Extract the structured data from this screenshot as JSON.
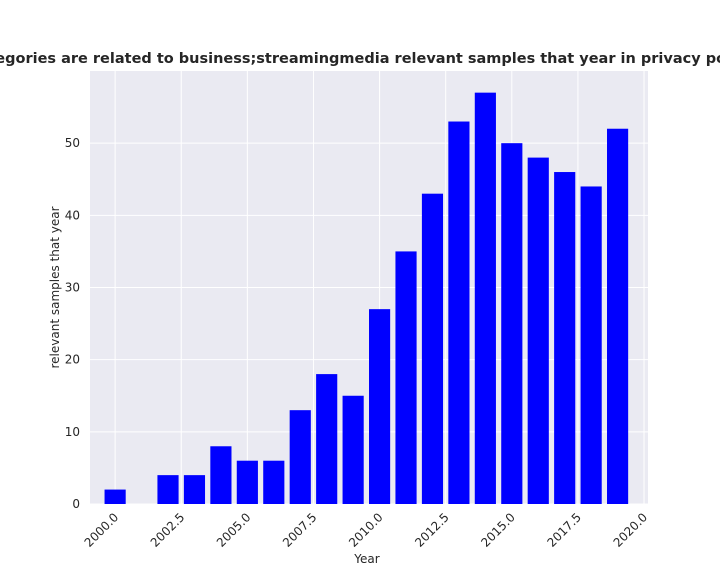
{
  "chart_data": {
    "type": "bar",
    "title": "categories are related to business;streamingmedia relevant samples that year in privacy policies",
    "xlabel": "Year",
    "ylabel": "relevant samples that year",
    "x": [
      2000,
      2001,
      2002,
      2003,
      2004,
      2005,
      2006,
      2007,
      2008,
      2009,
      2010,
      2011,
      2012,
      2013,
      2014,
      2015,
      2016,
      2017,
      2018,
      2019
    ],
    "values": [
      2,
      0,
      4,
      4,
      8,
      6,
      6,
      13,
      18,
      15,
      27,
      35,
      43,
      53,
      57,
      50,
      48,
      46,
      44,
      52
    ],
    "xlim": [
      1999.05,
      2020.15
    ],
    "ylim": [
      0,
      60
    ],
    "xticks": [
      2000.0,
      2002.5,
      2005.0,
      2007.5,
      2010.0,
      2012.5,
      2015.0,
      2017.5,
      2020.0
    ],
    "xtick_labels": [
      "2000.0",
      "2002.5",
      "2005.0",
      "2007.5",
      "2010.0",
      "2012.5",
      "2015.0",
      "2017.5",
      "2020.0"
    ],
    "yticks": [
      0,
      10,
      20,
      30,
      40,
      50
    ],
    "grid": true,
    "bar_color": "#0000ff",
    "background_color": "#eaeaf2",
    "grid_color": "#ffffff"
  }
}
